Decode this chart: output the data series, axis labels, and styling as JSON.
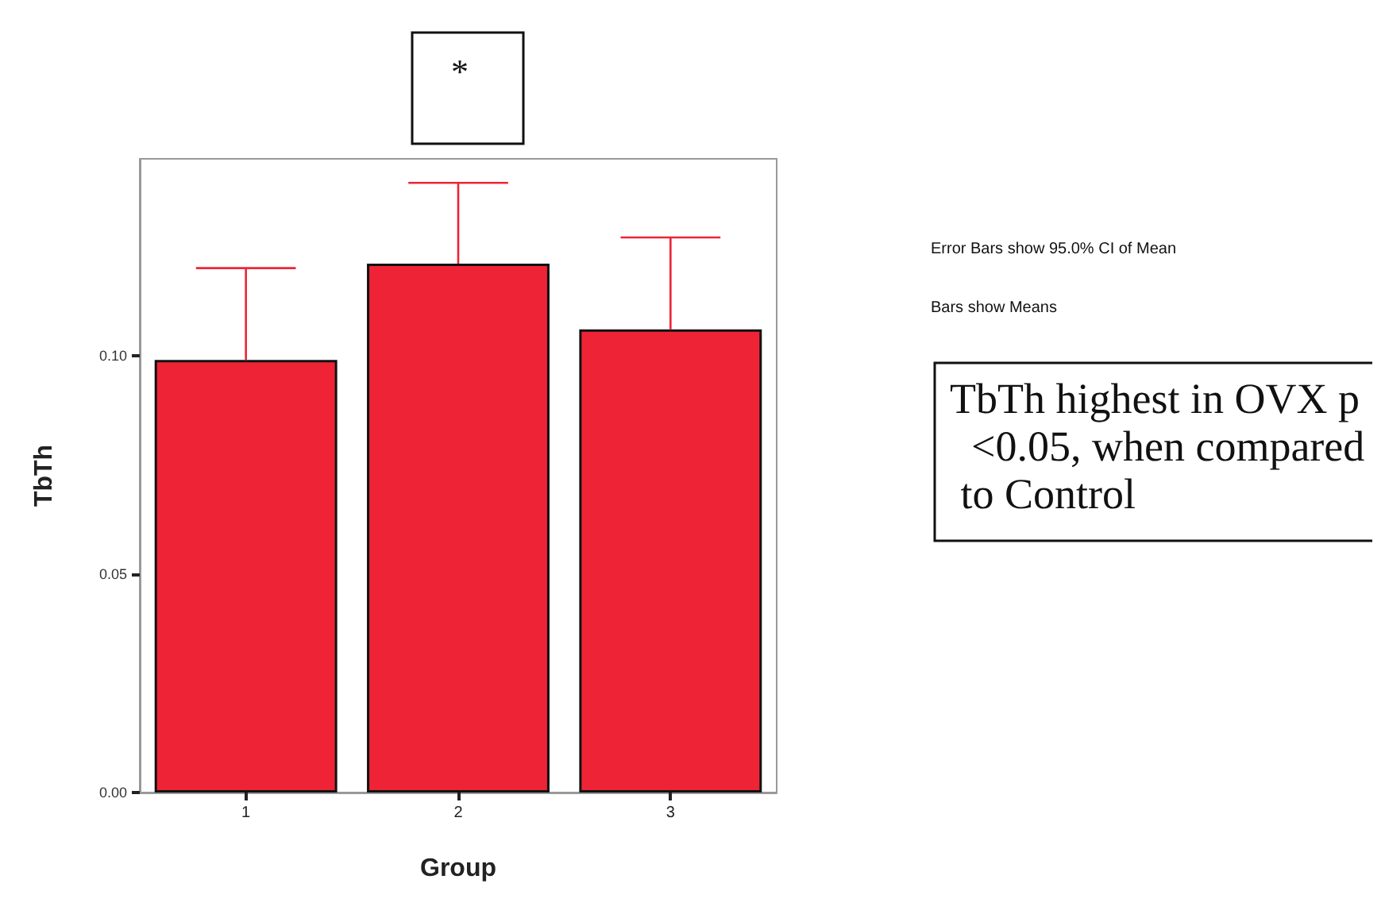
{
  "chart_data": {
    "type": "bar",
    "xlabel": "Group",
    "ylabel": "TbTh",
    "categories": [
      "1",
      "2",
      "3"
    ],
    "values": [
      0.099,
      0.121,
      0.106
    ],
    "errors": [
      [
        0.099,
        0.12
      ],
      [
        0.121,
        0.1395
      ],
      [
        0.106,
        0.127
      ]
    ],
    "color": "#ee2436",
    "ylim": [
      0,
      0.145
    ],
    "yticks": [
      {
        "value": 0,
        "label": "0.00"
      },
      {
        "value": 0.05,
        "label": "0.05"
      },
      {
        "value": 0.1,
        "label": "0.10"
      }
    ],
    "grid": false,
    "annotations": [
      "*",
      "Error Bars show 95.0% CI of Mean",
      "Bars show Means",
      "TbTh highest in OVX p  <0.05, when compared to Control"
    ]
  }
}
